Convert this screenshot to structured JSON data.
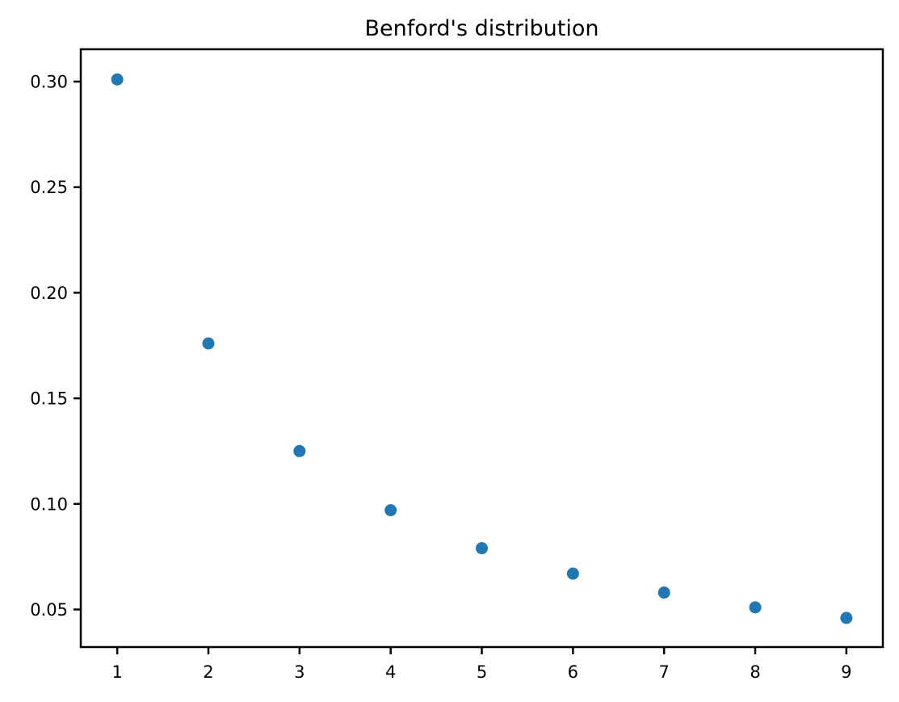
{
  "figure": {
    "background_color": "#ffffff",
    "frame_color": "#000000",
    "text_color": "#000000"
  },
  "chart_data": {
    "type": "scatter",
    "title": "Benford's distribution",
    "xlabel": "",
    "ylabel": "",
    "x": [
      1,
      2,
      3,
      4,
      5,
      6,
      7,
      8,
      9
    ],
    "y": [
      0.301,
      0.176,
      0.125,
      0.097,
      0.079,
      0.067,
      0.058,
      0.051,
      0.046
    ],
    "xlim": [
      0.6,
      9.4
    ],
    "ylim": [
      0.0322,
      0.3153
    ],
    "x_ticks": [
      1,
      2,
      3,
      4,
      5,
      6,
      7,
      8,
      9
    ],
    "x_tick_labels": [
      "1",
      "2",
      "3",
      "4",
      "5",
      "6",
      "7",
      "8",
      "9"
    ],
    "y_ticks": [
      0.05,
      0.1,
      0.15,
      0.2,
      0.25,
      0.3
    ],
    "y_tick_labels": [
      "0.05",
      "0.10",
      "0.15",
      "0.20",
      "0.25",
      "0.30"
    ],
    "marker_color": "#1f77b4",
    "marker_radius_px": 7.5,
    "grid": false,
    "legend": null
  }
}
